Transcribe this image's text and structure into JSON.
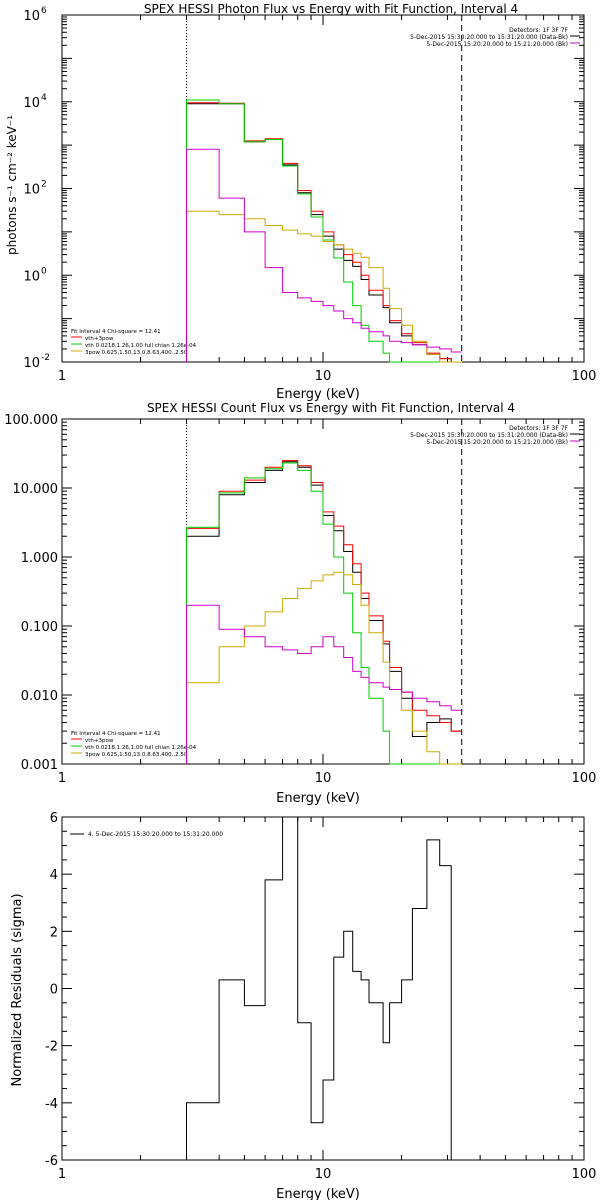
{
  "chart_data": [
    {
      "type": "line",
      "title": "SPEX HESSI Photon Flux vs Energy with Fit Function, Interval 4",
      "xlabel": "Energy (keV)",
      "ylabel": "photons s⁻¹ cm⁻² keV⁻¹",
      "xscale": "log",
      "yscale": "log",
      "xlim": [
        1,
        100
      ],
      "ylim": [
        0.01,
        1000000
      ],
      "xticks": [
        "1",
        "10",
        "100"
      ],
      "yticks": [
        {
          "v": 0.01,
          "base": "10",
          "exp": "-2"
        },
        {
          "v": 1,
          "base": "10",
          "exp": "0"
        },
        {
          "v": 100,
          "base": "10",
          "exp": "2"
        },
        {
          "v": 10000,
          "base": "10",
          "exp": "4"
        },
        {
          "v": 1000000,
          "base": "10",
          "exp": "6"
        }
      ],
      "info": [
        "Detectors: 1F 3F 7F",
        "5-Dec-2015 15:30:20.000 to 15:31:20.000 (Data-Bk)",
        "5-Dec-2015 15:20:20.000 to 15:21:20.000 (Bk)"
      ],
      "info_colors": [
        "#000000",
        "#cc00cc"
      ],
      "fit_legend": [
        "Fit Interval 4   Chi-square = 12.41",
        "vth+3pow",
        "vth 0.0218,1.26,1.00  full chian 1.26e-04",
        "3pow 0.625,1.50,13.0,8.63,400.,2.50"
      ],
      "fit_legend_colors": [
        "#000000",
        "#ff0000",
        "#00cc00",
        "#ccaa00"
      ],
      "vlines": [
        {
          "x": 3,
          "style": "dotted"
        },
        {
          "x": 34,
          "style": "dashed"
        }
      ],
      "edges": [
        3,
        4,
        5,
        6,
        7,
        8,
        9,
        10,
        11,
        12,
        13,
        14,
        15,
        17,
        18,
        20,
        22,
        25,
        28,
        31,
        34
      ],
      "series": [
        {
          "color": "#000000",
          "values": [
            9000,
            9000,
            1200,
            1350,
            350,
            80,
            25,
            8,
            4,
            2.2,
            1.6,
            0.8,
            0.35,
            0.18,
            0.08,
            0.04,
            0.025,
            0.015,
            0.012,
            0.009
          ]
        },
        {
          "color": "#ff0000",
          "values": [
            9500,
            9200,
            1250,
            1400,
            380,
            90,
            30,
            10,
            5,
            3,
            2,
            1,
            0.45,
            0.2,
            0.09,
            0.045,
            0.028,
            0.016,
            0.012,
            0.009
          ]
        },
        {
          "color": "#00cc00",
          "values": [
            11000,
            9000,
            1200,
            1350,
            330,
            75,
            22,
            6.5,
            2.5,
            0.7,
            0.2,
            0.07,
            0.03,
            0.016,
            0.01,
            0.01,
            0.01,
            0.01,
            0.01,
            0.01
          ]
        },
        {
          "color": "#ccaa00",
          "values": [
            30,
            25,
            20,
            14,
            11,
            9,
            8,
            6,
            5,
            4,
            3.2,
            2.6,
            1.5,
            0.5,
            0.17,
            0.07,
            0.03,
            0.015,
            0.01,
            0.01
          ]
        },
        {
          "color": "#cc00cc",
          "values": [
            800,
            60,
            10,
            1.5,
            0.4,
            0.3,
            0.25,
            0.2,
            0.15,
            0.1,
            0.08,
            0.06,
            0.05,
            0.04,
            0.03,
            0.028,
            0.025,
            0.022,
            0.02,
            0.017
          ]
        }
      ]
    },
    {
      "type": "line",
      "title": "SPEX HESSI Count Flux vs Energy with Fit Function, Interval 4",
      "xlabel": "Energy (keV)",
      "ylabel": "",
      "xscale": "log",
      "yscale": "log",
      "xlim": [
        1,
        100
      ],
      "ylim": [
        0.001,
        100
      ],
      "xticks": [
        "1",
        "10",
        "100"
      ],
      "yticks": [
        {
          "v": 0.001,
          "text": "0.001"
        },
        {
          "v": 0.01,
          "text": "0.010"
        },
        {
          "v": 0.1,
          "text": "0.100"
        },
        {
          "v": 1,
          "text": "1.000"
        },
        {
          "v": 10,
          "text": "10.000"
        },
        {
          "v": 100,
          "text": "100.000"
        }
      ],
      "info": [
        "Detectors: 1F 3F 7F",
        "5-Dec-2015 15:30:20.000 to 15:31:20.000 (Data-Bk)",
        "5-Dec-2015 15:20:20.000 to 15:21:20.000 (Bk)"
      ],
      "info_colors": [
        "#000000",
        "#cc00cc"
      ],
      "fit_legend": [
        "Fit Interval 4   Chi-square = 12.41",
        "vth+3pow",
        "vth 0.0218,1.26,1.00  full chian 1.26e-04",
        "3pow 0.625,1.50,13.0,8.63,400.,2.50"
      ],
      "fit_legend_colors": [
        "#000000",
        "#ff0000",
        "#00cc00",
        "#ccaa00"
      ],
      "vlines": [
        {
          "x": 3,
          "style": "dotted"
        },
        {
          "x": 34,
          "style": "dashed"
        }
      ],
      "edges": [
        3,
        4,
        5,
        6,
        7,
        8,
        9,
        10,
        11,
        12,
        13,
        14,
        15,
        17,
        18,
        20,
        22,
        25,
        28,
        31,
        34
      ],
      "series": [
        {
          "color": "#000000",
          "values": [
            2.0,
            8.0,
            12.0,
            18.0,
            24.0,
            20.0,
            11.0,
            4.0,
            2.4,
            1.2,
            0.6,
            0.25,
            0.12,
            0.055,
            0.022,
            0.009,
            0.0025,
            0.004,
            0.0045,
            0.003
          ]
        },
        {
          "color": "#ff0000",
          "values": [
            2.6,
            9.0,
            13.0,
            20.0,
            25.0,
            21.0,
            12.0,
            4.5,
            2.8,
            1.5,
            0.8,
            0.3,
            0.14,
            0.06,
            0.025,
            0.011,
            0.006,
            0.005,
            0.004,
            0.003
          ]
        },
        {
          "color": "#00cc00",
          "values": [
            2.7,
            8.5,
            14.0,
            19.0,
            23.0,
            18.0,
            9.0,
            3.0,
            1.0,
            0.3,
            0.08,
            0.025,
            0.009,
            0.003,
            0.001,
            0.001,
            0.001,
            0.001,
            0.001,
            0.001
          ]
        },
        {
          "color": "#ccaa00",
          "values": [
            0.015,
            0.05,
            0.1,
            0.16,
            0.25,
            0.35,
            0.45,
            0.55,
            0.6,
            0.55,
            0.4,
            0.2,
            0.08,
            0.03,
            0.012,
            0.006,
            0.003,
            0.0015,
            0.001,
            0.001
          ]
        },
        {
          "color": "#cc00cc",
          "values": [
            0.2,
            0.09,
            0.07,
            0.05,
            0.045,
            0.04,
            0.05,
            0.07,
            0.05,
            0.035,
            0.022,
            0.018,
            0.015,
            0.013,
            0.012,
            0.011,
            0.009,
            0.008,
            0.007,
            0.006
          ]
        }
      ]
    },
    {
      "type": "line",
      "title": "",
      "xlabel": "Energy (keV)",
      "ylabel": "Normalized Residuals (sigma)",
      "xscale": "log",
      "yscale": "linear",
      "xlim": [
        1,
        100
      ],
      "ylim": [
        -6,
        6
      ],
      "xticks": [
        "1",
        "10",
        "100"
      ],
      "yticks": [
        {
          "v": -6,
          "text": "-6"
        },
        {
          "v": -4,
          "text": "-4"
        },
        {
          "v": -2,
          "text": "-2"
        },
        {
          "v": 0,
          "text": "0"
        },
        {
          "v": 2,
          "text": "2"
        },
        {
          "v": 4,
          "text": "4"
        },
        {
          "v": 6,
          "text": "6"
        }
      ],
      "legend": [
        "4.  5-Dec-2015 15:30:20.000 to 15:31:20.000"
      ],
      "edges": [
        3,
        4,
        5,
        6,
        7,
        8,
        9,
        10,
        11,
        12,
        13,
        14,
        15,
        17,
        18,
        20,
        22,
        25,
        28,
        31,
        34
      ],
      "series": [
        {
          "color": "#000000",
          "values": [
            -4.0,
            0.3,
            -0.6,
            3.8,
            6.0,
            -1.2,
            -4.7,
            -3.2,
            1.1,
            2.0,
            0.6,
            0.3,
            -0.5,
            -1.9,
            -0.5,
            0.3,
            2.8,
            5.2,
            4.3,
            -6.0
          ]
        }
      ]
    }
  ]
}
